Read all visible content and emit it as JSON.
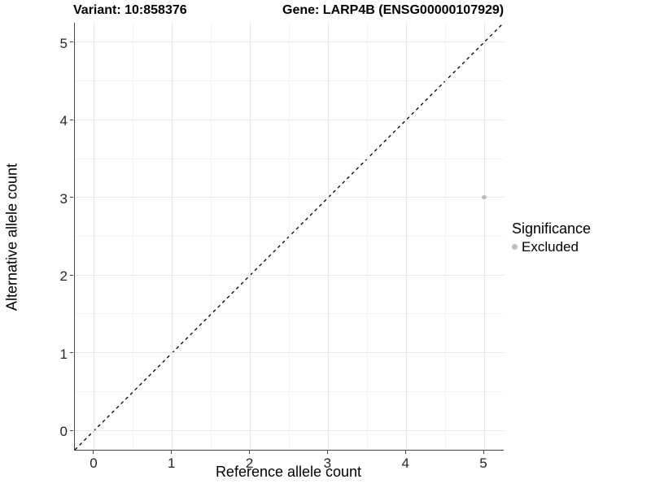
{
  "chart_data": {
    "type": "scatter",
    "title_left": "Variant: 10:858376",
    "title_right": "Gene: LARP4B (ENSG00000107929)",
    "xlabel": "Reference allele count",
    "ylabel": "Alternative allele count",
    "xlim": [
      -0.25,
      5.25
    ],
    "ylim": [
      -0.25,
      5.25
    ],
    "xticks": [
      0,
      1,
      2,
      3,
      4,
      5
    ],
    "yticks": [
      0,
      1,
      2,
      3,
      4,
      5
    ],
    "minor_gridlines": true,
    "grid": true,
    "identity_line": {
      "slope": 1,
      "intercept": 0,
      "style": "dashed",
      "color": "#000000"
    },
    "points": [
      {
        "x": 5,
        "y": 3,
        "series": "Excluded",
        "color": "#bebebe"
      }
    ],
    "legend": {
      "position": "right",
      "title": "Significance",
      "items": [
        {
          "label": "Excluded",
          "color": "#bebebe"
        }
      ]
    },
    "colors": {
      "panel_background": "#ffffff",
      "grid_major": "#e7e7e7",
      "grid_minor": "#f3f3f3",
      "axis_line": "#474747",
      "tick_text": "#262626",
      "title_text": "#000000"
    }
  }
}
